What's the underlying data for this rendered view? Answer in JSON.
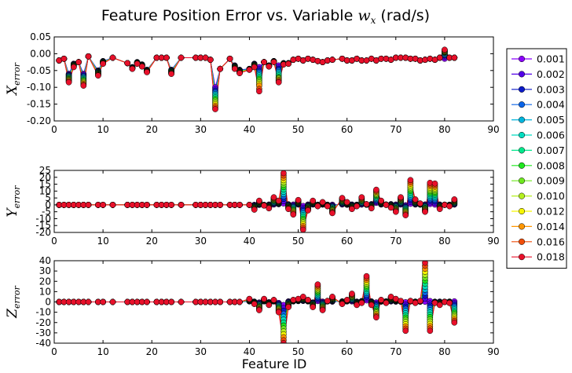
{
  "chart_data": {
    "type": "line",
    "title_prefix": "Feature Position Error vs. Variable ",
    "title_symbol": "w",
    "title_subscript": "x",
    "title_suffix": " (rad/s)",
    "xlabel": "Feature ID",
    "x_ticks": [
      "0",
      "10",
      "20",
      "30",
      "40",
      "50",
      "60",
      "70",
      "80",
      "90"
    ],
    "legend": {
      "position": "right",
      "entries": [
        {
          "label": "0.001",
          "color": "#8b00ff"
        },
        {
          "label": "0.002",
          "color": "#5200e8"
        },
        {
          "label": "0.003",
          "color": "#0a1ac8"
        },
        {
          "label": "0.004",
          "color": "#0a64e8"
        },
        {
          "label": "0.005",
          "color": "#00b4dc"
        },
        {
          "label": "0.006",
          "color": "#00dcc0"
        },
        {
          "label": "0.007",
          "color": "#00e88c"
        },
        {
          "label": "0.008",
          "color": "#1ee81e"
        },
        {
          "label": "0.009",
          "color": "#6ee81e"
        },
        {
          "label": "0.010",
          "color": "#b4f01e"
        },
        {
          "label": "0.012",
          "color": "#f5f500"
        },
        {
          "label": "0.014",
          "color": "#ff9600"
        },
        {
          "label": "0.016",
          "color": "#f04e0a"
        },
        {
          "label": "0.018",
          "color": "#e8102a"
        }
      ]
    },
    "feature_ids": [
      1,
      2,
      3,
      4,
      5,
      6,
      7,
      9,
      10,
      12,
      15,
      16,
      17,
      18,
      19,
      21,
      22,
      23,
      24,
      26,
      29,
      30,
      31,
      32,
      33,
      34,
      36,
      37,
      38,
      40,
      41,
      42,
      43,
      44,
      45,
      46,
      47,
      48,
      49,
      50,
      51,
      52,
      53,
      54,
      55,
      56,
      57,
      59,
      60,
      61,
      62,
      63,
      64,
      65,
      66,
      67,
      68,
      69,
      70,
      71,
      72,
      73,
      74,
      75,
      76,
      77,
      78,
      79,
      80,
      81,
      82
    ],
    "panels": [
      {
        "ylabel_symbol": "X",
        "ylabel_subscript": "error",
        "ylim": [
          -0.2,
          0.05
        ],
        "y_ticks": [
          "0.05",
          "0.00",
          "-0.05",
          "-0.10",
          "-0.15",
          "-0.20"
        ],
        "y_tick_values": [
          0.05,
          0.0,
          -0.05,
          -0.1,
          -0.15,
          -0.2
        ],
        "series": [
          {
            "name": "0.001",
            "values": [
              -0.02,
              -0.015,
              -0.06,
              -0.03,
              -0.025,
              -0.06,
              -0.008,
              -0.05,
              -0.022,
              -0.012,
              -0.028,
              -0.04,
              -0.025,
              -0.032,
              -0.048,
              -0.012,
              -0.012,
              -0.012,
              -0.048,
              -0.012,
              -0.012,
              -0.012,
              -0.012,
              -0.018,
              -0.1,
              -0.045,
              -0.015,
              -0.035,
              -0.048,
              -0.045,
              -0.03,
              -0.04,
              -0.025,
              -0.035,
              -0.022,
              -0.035,
              -0.028,
              -0.028,
              -0.018,
              -0.015,
              -0.02,
              -0.015,
              -0.018,
              -0.022,
              -0.025,
              -0.02,
              -0.018,
              -0.015,
              -0.02,
              -0.02,
              -0.015,
              -0.02,
              -0.02,
              -0.015,
              -0.02,
              -0.015,
              -0.015,
              -0.018,
              -0.012,
              -0.012,
              -0.012,
              -0.015,
              -0.015,
              -0.02,
              -0.018,
              -0.015,
              -0.018,
              -0.012,
              -0.015,
              -0.012,
              -0.012
            ]
          },
          {
            "name": "0.018",
            "values": [
              -0.02,
              -0.015,
              -0.085,
              -0.04,
              -0.025,
              -0.095,
              -0.008,
              -0.065,
              -0.03,
              -0.012,
              -0.028,
              -0.045,
              -0.03,
              -0.038,
              -0.055,
              -0.012,
              -0.012,
              -0.012,
              -0.06,
              -0.012,
              -0.012,
              -0.012,
              -0.012,
              -0.018,
              -0.165,
              -0.045,
              -0.015,
              -0.045,
              -0.058,
              -0.048,
              -0.04,
              -0.112,
              -0.025,
              -0.038,
              -0.025,
              -0.085,
              -0.032,
              -0.03,
              -0.018,
              -0.015,
              -0.02,
              -0.015,
              -0.018,
              -0.022,
              -0.025,
              -0.02,
              -0.018,
              -0.015,
              -0.02,
              -0.02,
              -0.015,
              -0.02,
              -0.02,
              -0.015,
              -0.02,
              -0.015,
              -0.015,
              -0.018,
              -0.012,
              -0.012,
              -0.012,
              -0.015,
              -0.015,
              -0.02,
              -0.018,
              -0.015,
              -0.018,
              -0.012,
              -0.015,
              -0.012,
              -0.012
            ]
          }
        ],
        "outliers": [
          {
            "x": 33,
            "values": [
              -0.1,
              -0.105,
              -0.11,
              -0.115,
              -0.12,
              -0.125,
              -0.13,
              -0.135,
              -0.14,
              -0.145,
              -0.15,
              -0.155,
              -0.16,
              -0.165
            ]
          },
          {
            "x": 42,
            "values": [
              -0.04,
              -0.045,
              -0.05,
              -0.055,
              -0.06,
              -0.065,
              -0.07,
              -0.075,
              -0.08,
              -0.085,
              -0.09,
              -0.095,
              -0.105,
              -0.112
            ]
          },
          {
            "x": 46,
            "values": [
              -0.035,
              -0.04,
              -0.045,
              -0.05,
              -0.055,
              -0.06,
              -0.065,
              -0.07,
              -0.072,
              -0.075,
              -0.078,
              -0.08,
              -0.083,
              -0.085
            ]
          },
          {
            "x": 80,
            "values": [
              -0.015,
              -0.01,
              -0.005,
              -0.003,
              0.0,
              0.002,
              0.004,
              0.005,
              0.006,
              0.007,
              0.008,
              0.01,
              0.011,
              0.012
            ]
          }
        ]
      },
      {
        "ylabel_symbol": "Y",
        "ylabel_subscript": "error",
        "ylim": [
          -20,
          25
        ],
        "y_ticks": [
          "25",
          "20",
          "15",
          "10",
          "5",
          "0",
          "-5",
          "-10",
          "-15",
          "-20"
        ],
        "y_tick_values": [
          25,
          20,
          15,
          10,
          5,
          0,
          -5,
          -10,
          -15,
          -20
        ],
        "series": [
          {
            "name": "0.001",
            "values": [
              0,
              0,
              0,
              0,
              0,
              0,
              0,
              0,
              0,
              0,
              0,
              0,
              0,
              0,
              0,
              0,
              0,
              0,
              0,
              0,
              0,
              0,
              0,
              0,
              0,
              0,
              0,
              0,
              0,
              0,
              0,
              0,
              0,
              0.2,
              0.3,
              0.5,
              1.0,
              0.4,
              0.2,
              0.3,
              -0.8,
              0.2,
              0.3,
              0.1,
              0.2,
              0.1,
              0.1,
              0.3,
              0.1,
              0.2,
              0.1,
              0.2,
              0.1,
              0.5,
              1.5,
              0.3,
              0.2,
              0.5,
              0.2,
              0.3,
              -0.3,
              0.8,
              0.3,
              0.2,
              0.3,
              0.6,
              0.2,
              0.2,
              0.1,
              0.1,
              0.2
            ]
          },
          {
            "name": "0.018",
            "values": [
              0,
              0,
              0,
              0,
              0,
              0,
              0,
              0,
              0,
              0,
              0,
              0,
              0,
              0,
              0,
              0,
              0,
              0,
              0,
              0,
              0,
              0,
              0,
              0,
              0,
              0,
              0,
              0,
              0,
              0,
              -3.5,
              3.0,
              -0.5,
              -2.5,
              5.5,
              3.0,
              23.0,
              -3.0,
              -7.0,
              3.5,
              -18.0,
              -4.0,
              3.0,
              -1.0,
              2.0,
              -1.0,
              -6.0,
              5.0,
              2.0,
              -3.0,
              -1.0,
              5.5,
              0.5,
              -2.5,
              11.0,
              3.0,
              0.0,
              -2.0,
              -5.0,
              5.5,
              -7.5,
              18.0,
              4.0,
              1.0,
              -5.0,
              16.0,
              15.5,
              -3.0,
              0.0,
              -1.0,
              4.0
            ]
          }
        ]
      },
      {
        "ylabel_symbol": "Z",
        "ylabel_subscript": "error",
        "ylim": [
          -40,
          40
        ],
        "y_ticks": [
          "40",
          "30",
          "20",
          "10",
          "0",
          "-10",
          "-20",
          "-30",
          "-40"
        ],
        "y_tick_values": [
          40,
          30,
          20,
          10,
          0,
          -10,
          -20,
          -30,
          -40
        ],
        "series": [
          {
            "name": "0.001",
            "values": [
              0,
              0,
              0,
              0,
              0,
              0,
              0,
              0,
              0,
              0,
              0,
              0,
              0,
              0,
              0,
              0,
              0,
              0,
              0,
              0,
              0,
              0,
              0,
              0,
              0,
              0,
              0,
              0,
              0,
              0.5,
              0.3,
              -0.5,
              0.5,
              -0.3,
              0.5,
              -1.0,
              -3.0,
              0.5,
              0.5,
              0.8,
              1.0,
              0.5,
              -0.5,
              0.8,
              0.3,
              0.5,
              0.3,
              0.5,
              0.5,
              0.5,
              0.3,
              0.8,
              1.5,
              0.5,
              -0.5,
              0.3,
              0.5,
              0.5,
              0.3,
              0.3,
              -0.3,
              0.5,
              0.3,
              0.3,
              0.2,
              0.8,
              0.2,
              0.3,
              0.2,
              0.3,
              0.5
            ]
          },
          {
            "name": "0.018",
            "values": [
              0,
              0,
              0,
              0,
              0,
              0,
              0,
              0,
              0,
              0,
              0,
              0,
              0,
              0,
              0,
              0,
              0,
              0,
              0,
              0,
              0,
              0,
              0,
              0,
              0,
              0,
              0,
              0,
              0,
              3.0,
              -2.0,
              -8.0,
              3.0,
              -3.0,
              2.0,
              -10.0,
              -40.0,
              -5.0,
              2.0,
              3.0,
              5.0,
              2.0,
              -5.0,
              17.0,
              -8.0,
              1.0,
              5.0,
              -2.0,
              2.0,
              8.0,
              -3.0,
              -1.0,
              25.0,
              -3.0,
              -15.0,
              2.0,
              -1.0,
              5.0,
              3.0,
              1.0,
              -28.0,
              1.0,
              -1.0,
              1.0,
              38.0,
              -28.0,
              -1.0,
              -3.0,
              0.0,
              -1.0,
              -20.0
            ]
          }
        ]
      }
    ]
  }
}
